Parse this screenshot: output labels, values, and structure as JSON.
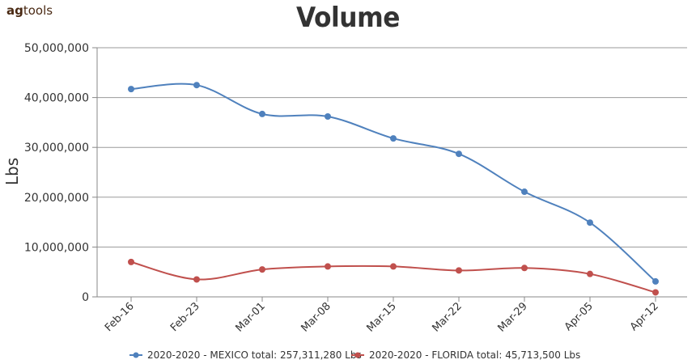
{
  "logo": {
    "part1": "ag",
    "part2": "tools"
  },
  "chart_data": {
    "type": "line",
    "title": "Volume",
    "xlabel": "",
    "ylabel": "Lbs",
    "categories": [
      "Feb-16",
      "Feb-23",
      "Mar-01",
      "Mar-08",
      "Mar-15",
      "Mar-22",
      "Mar-29",
      "Apr-05",
      "Apr-12"
    ],
    "ylim": [
      0,
      50000000
    ],
    "yticks": [
      0,
      10000000,
      20000000,
      30000000,
      40000000,
      50000000
    ],
    "ytick_labels": [
      "0",
      "10,000,000",
      "20,000,000",
      "30,000,000",
      "40,000,000",
      "50,000,000"
    ],
    "grid": true,
    "legend_position": "bottom",
    "series": [
      {
        "name": "2020-2020 - MEXICO total: 257,311,280 Lbs",
        "color": "#4f81bd",
        "values": [
          41700000,
          42500000,
          36700000,
          36200000,
          31800000,
          28700000,
          21100000,
          14900000,
          3100000
        ]
      },
      {
        "name": "2020-2020 - FLORIDA total: 45,713,500 Lbs",
        "color": "#c0504d",
        "values": [
          7000000,
          3500000,
          5500000,
          6100000,
          6100000,
          5300000,
          5800000,
          4600000,
          900000
        ]
      }
    ]
  }
}
